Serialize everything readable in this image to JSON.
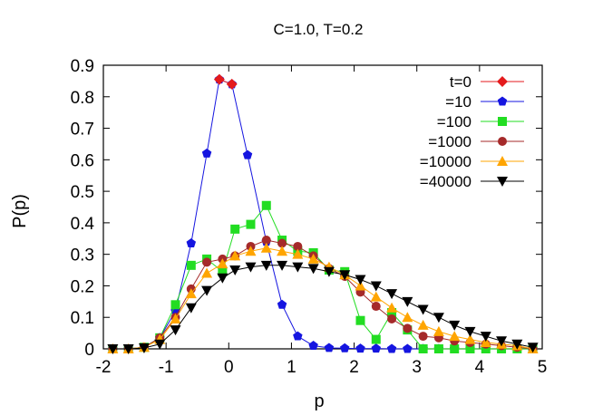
{
  "chart_data": {
    "type": "line",
    "title": "C=1.0, T=0.2",
    "xlabel": "p",
    "ylabel": "P(p)",
    "xlim": [
      -2,
      5
    ],
    "ylim": [
      0,
      0.9
    ],
    "xticks": [
      -2,
      -1,
      0,
      1,
      2,
      3,
      4,
      5
    ],
    "xtick_labels": [
      "-2",
      "-1",
      "0",
      "1",
      "2",
      "3",
      "4",
      "5"
    ],
    "yticks": [
      0,
      0.1,
      0.2,
      0.3,
      0.4,
      0.5,
      0.6,
      0.7,
      0.8,
      0.9
    ],
    "ytick_labels": [
      "0",
      "0.1",
      "0.2",
      "0.3",
      "0.4",
      "0.5",
      "0.6",
      "0.7",
      "0.8",
      "0.9"
    ],
    "legend_position": "top-right",
    "grid": false,
    "series": [
      {
        "name": "t=0",
        "color": "#e41a1c",
        "marker": "diamond",
        "x": [
          -0.15,
          0.05
        ],
        "y": [
          0.855,
          0.84
        ]
      },
      {
        "name": "=10",
        "color": "#1515e0",
        "marker": "pentagon",
        "x": [
          -1.85,
          -1.6,
          -1.35,
          -1.1,
          -0.85,
          -0.6,
          -0.35,
          -0.15,
          0.05,
          0.3,
          0.6,
          0.85,
          1.1,
          1.35,
          1.6,
          1.85,
          2.1,
          2.35,
          2.6,
          2.85,
          3.1,
          3.35,
          3.6,
          3.85,
          4.1,
          4.35,
          4.6,
          4.85
        ],
        "y": [
          0,
          0,
          0.005,
          0.035,
          0.12,
          0.335,
          0.62,
          0.855,
          0.84,
          0.615,
          0.34,
          0.14,
          0.04,
          0.01,
          0.003,
          0.002,
          0.001,
          0.001,
          0,
          0,
          0,
          0,
          0,
          0,
          0,
          0,
          0,
          0
        ]
      },
      {
        "name": "=100",
        "color": "#22dd22",
        "marker": "square",
        "x": [
          -1.85,
          -1.6,
          -1.35,
          -1.1,
          -0.85,
          -0.6,
          -0.35,
          -0.1,
          0.1,
          0.35,
          0.6,
          0.85,
          1.1,
          1.35,
          1.6,
          1.85,
          2.1,
          2.35,
          2.6,
          2.85,
          3.1,
          3.35,
          3.6,
          3.85,
          4.1,
          4.35,
          4.6,
          4.85
        ],
        "y": [
          0,
          0,
          0.005,
          0.035,
          0.14,
          0.265,
          0.285,
          0.245,
          0.38,
          0.395,
          0.455,
          0.345,
          0.31,
          0.305,
          0.25,
          0.245,
          0.09,
          0.03,
          0.115,
          0.06,
          0,
          0,
          0,
          0,
          0,
          0,
          0,
          0
        ]
      },
      {
        "name": "=1000",
        "color": "#a52a2a",
        "marker": "circle",
        "x": [
          -1.85,
          -1.6,
          -1.35,
          -1.1,
          -0.85,
          -0.6,
          -0.35,
          -0.1,
          0.1,
          0.35,
          0.6,
          0.85,
          1.1,
          1.35,
          1.6,
          1.85,
          2.1,
          2.35,
          2.6,
          2.85,
          3.1,
          3.35,
          3.6,
          3.85,
          4.1,
          4.35,
          4.6,
          4.85
        ],
        "y": [
          0,
          0,
          0.005,
          0.035,
          0.1,
          0.19,
          0.275,
          0.285,
          0.295,
          0.325,
          0.345,
          0.335,
          0.325,
          0.295,
          0.255,
          0.23,
          0.18,
          0.135,
          0.095,
          0.065,
          0.04,
          0.035,
          0.025,
          0.02,
          0.015,
          0.01,
          0.005,
          0
        ]
      },
      {
        "name": "=10000",
        "color": "#ffa500",
        "marker": "triangle-up",
        "x": [
          -1.85,
          -1.6,
          -1.35,
          -1.1,
          -0.85,
          -0.6,
          -0.35,
          -0.1,
          0.1,
          0.35,
          0.6,
          0.85,
          1.1,
          1.35,
          1.6,
          1.85,
          2.1,
          2.35,
          2.6,
          2.85,
          3.1,
          3.35,
          3.6,
          3.85,
          4.1,
          4.35,
          4.6,
          4.85
        ],
        "y": [
          0,
          0,
          0.005,
          0.03,
          0.095,
          0.175,
          0.24,
          0.27,
          0.295,
          0.31,
          0.32,
          0.31,
          0.3,
          0.285,
          0.26,
          0.235,
          0.2,
          0.165,
          0.13,
          0.1,
          0.075,
          0.055,
          0.04,
          0.03,
          0.02,
          0.015,
          0.01,
          0
        ]
      },
      {
        "name": "=40000",
        "color": "#000000",
        "marker": "triangle-down",
        "x": [
          -1.85,
          -1.6,
          -1.35,
          -1.1,
          -0.85,
          -0.6,
          -0.35,
          -0.1,
          0.1,
          0.35,
          0.6,
          0.85,
          1.1,
          1.35,
          1.6,
          1.85,
          2.1,
          2.35,
          2.6,
          2.85,
          3.1,
          3.35,
          3.6,
          3.85,
          4.1,
          4.35,
          4.6,
          4.85
        ],
        "y": [
          0,
          0,
          0.003,
          0.015,
          0.06,
          0.13,
          0.185,
          0.225,
          0.25,
          0.26,
          0.265,
          0.265,
          0.26,
          0.255,
          0.245,
          0.235,
          0.22,
          0.2,
          0.175,
          0.15,
          0.125,
          0.1,
          0.075,
          0.055,
          0.04,
          0.025,
          0.015,
          0.005
        ]
      }
    ]
  }
}
